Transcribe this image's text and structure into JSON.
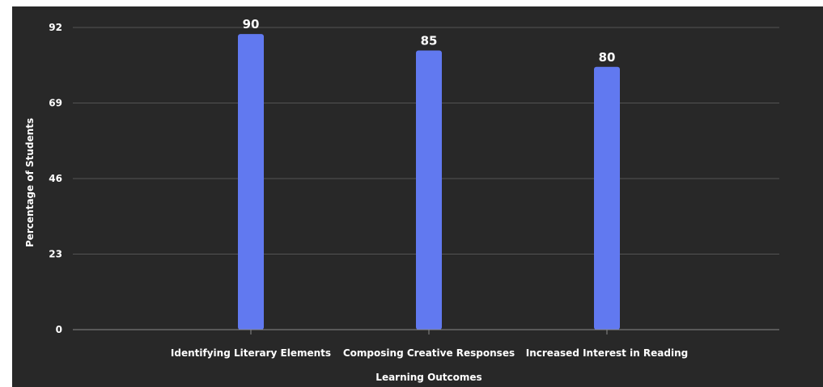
{
  "chart_data": {
    "type": "bar",
    "title": "",
    "xlabel": "Learning Outcomes",
    "ylabel": "Percentage of Students",
    "categories": [
      "Identifying Literary Elements",
      "Composing Creative Responses",
      "Increased Interest in Reading"
    ],
    "values": [
      90,
      85,
      80
    ],
    "data_labels": [
      "90",
      "85",
      "80"
    ],
    "ylim": [
      0,
      92
    ],
    "yticks": [
      0,
      23,
      46,
      69,
      92
    ],
    "ytick_labels": [
      "0",
      "23",
      "46",
      "69",
      "92"
    ],
    "grid": true,
    "legend": "none",
    "colors": {
      "background": "#282828",
      "bar": "#6179f0",
      "grid": "#545454",
      "text": "#ffffff"
    }
  }
}
